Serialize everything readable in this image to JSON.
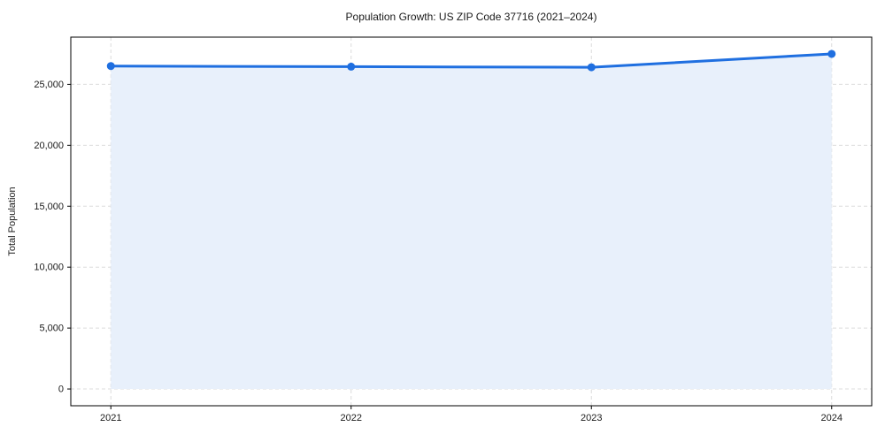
{
  "chart_data": {
    "type": "line",
    "title": "Population Growth: US ZIP Code 37716 (2021–2024)",
    "x": [
      2021,
      2022,
      2023,
      2024
    ],
    "xtick_labels": [
      "2021",
      "2022",
      "2023",
      "2024"
    ],
    "series": [
      {
        "name": "Total Population",
        "values": [
          26500,
          26450,
          26400,
          27500
        ]
      }
    ],
    "xlabel": "",
    "ylabel": "Total Population",
    "yticks": [
      0,
      5000,
      10000,
      15000,
      20000,
      25000
    ],
    "ytick_labels": [
      "0",
      "5,000",
      "10,000",
      "15,000",
      "20,000",
      "25,000"
    ],
    "ylim": [
      -1375,
      28875
    ],
    "x_margin_frac": 0.05,
    "grid": {
      "visible": true,
      "style": "dashed",
      "color": "#dcdcdc"
    },
    "legend": "none",
    "area_fill": true,
    "marker_style": "circle",
    "colors": {
      "line": "#1f6fe0",
      "marker": "#1f6fe0",
      "fill": "#e8f0fb",
      "frame": "#000000",
      "grid": "#dcdcdc",
      "text": "#1a1a1a"
    }
  }
}
